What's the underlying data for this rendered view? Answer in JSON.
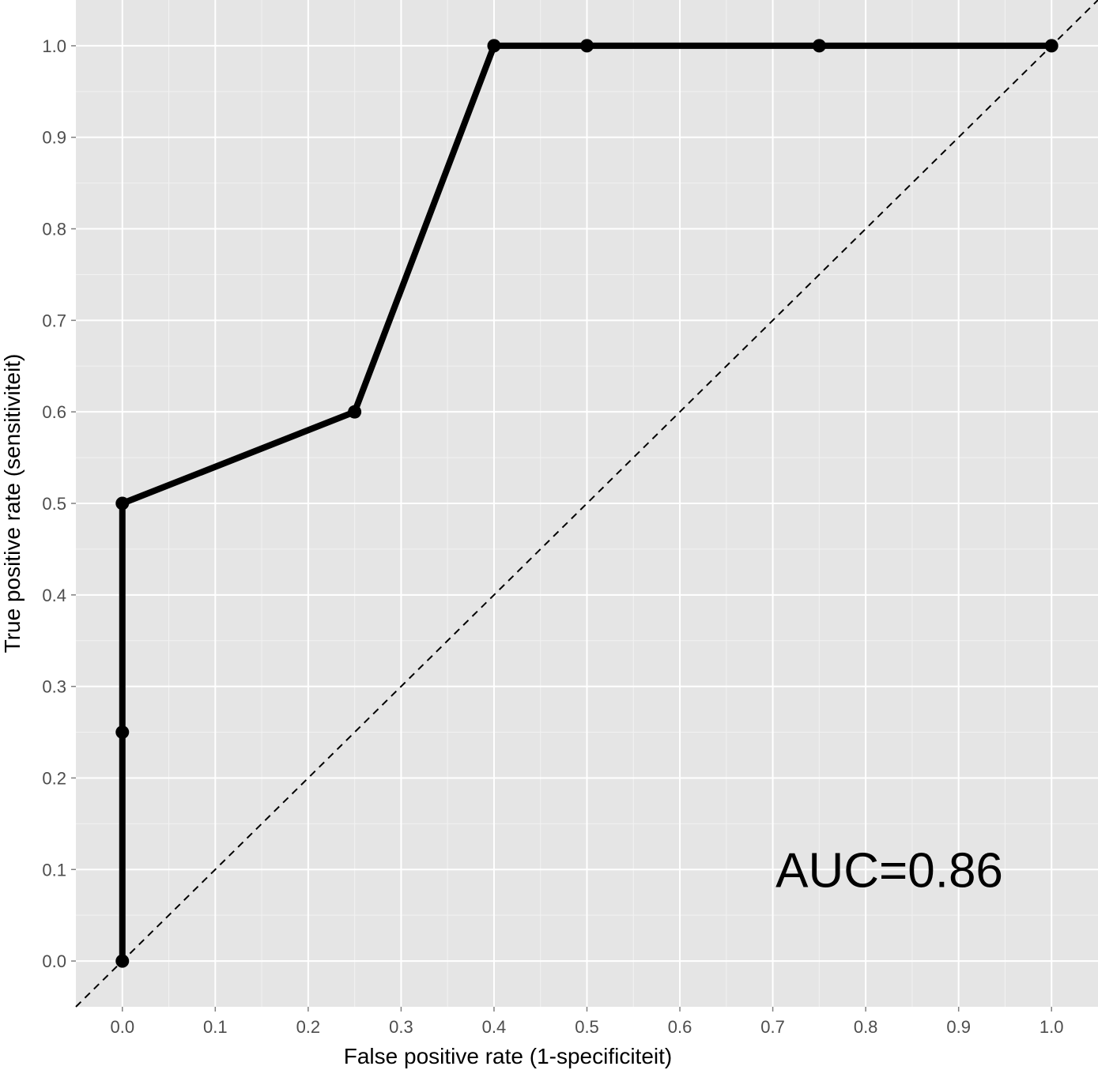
{
  "chart_data": {
    "type": "line",
    "xlabel": "False positive rate (1-specificiteit)",
    "ylabel": "True positive rate (sensitiviteit)",
    "xlim": [
      -0.05,
      1.05
    ],
    "ylim": [
      -0.05,
      1.05
    ],
    "x_ticks": [
      0.0,
      0.1,
      0.2,
      0.3,
      0.4,
      0.5,
      0.6,
      0.7,
      0.8,
      0.9,
      1.0
    ],
    "y_ticks": [
      0.0,
      0.1,
      0.2,
      0.3,
      0.4,
      0.5,
      0.6,
      0.7,
      0.8,
      0.9,
      1.0
    ],
    "x_tick_labels": [
      "0.0",
      "0.1",
      "0.2",
      "0.3",
      "0.4",
      "0.5",
      "0.6",
      "0.7",
      "0.8",
      "0.9",
      "1.0"
    ],
    "y_tick_labels": [
      "0.0",
      "0.1",
      "0.2",
      "0.3",
      "0.4",
      "0.5",
      "0.6",
      "0.7",
      "0.8",
      "0.9",
      "1.0"
    ],
    "grid": true,
    "series": [
      {
        "x": [
          0.0,
          0.0,
          0.0,
          0.25,
          0.4,
          0.5,
          0.75,
          1.0
        ],
        "y": [
          0.0,
          0.25,
          0.5,
          0.6,
          1.0,
          1.0,
          1.0,
          1.0
        ],
        "color": "#000000",
        "markers": true
      }
    ],
    "reference_line": {
      "x": [
        -0.05,
        1.05
      ],
      "y": [
        -0.05,
        1.05
      ],
      "style": "dashed",
      "color": "#000000"
    },
    "annotation": {
      "text": "AUC=0.86",
      "x": 0.8,
      "y": 0.1
    },
    "colors": {
      "panel_background": "#e5e5e5",
      "grid_major": "#ffffff",
      "grid_minor": "#f2f2f2",
      "line": "#000000",
      "tick_text": "#4d4d4d"
    }
  }
}
